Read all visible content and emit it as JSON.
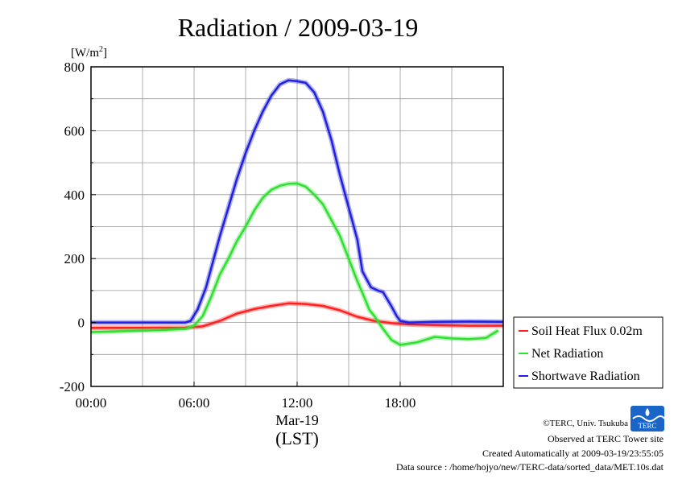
{
  "chart_data": {
    "type": "line",
    "title": "Radiation / 2009-03-19",
    "yunit": "[W/m",
    "yunit_sup": "2",
    "yunit_close": "]",
    "xlabel_date": "Mar-19",
    "xlabel": "(LST)",
    "xlim_hours": [
      0,
      24
    ],
    "ylim": [
      -200,
      800
    ],
    "grid": true,
    "legend_position": "right-bottom",
    "yticks": [
      -200,
      0,
      200,
      400,
      600,
      800
    ],
    "ytick_labels": [
      "-200",
      "0",
      "200",
      "400",
      "600",
      "800"
    ],
    "xticks": [
      0,
      6,
      12,
      18
    ],
    "xtick_labels": [
      "00:00",
      "06:00",
      "12:00",
      "18:00"
    ],
    "series": [
      {
        "name": "Soil Heat Flux 0.02m",
        "color": "#ff2020",
        "x": [
          0,
          3,
          5.5,
          6.5,
          7.5,
          8.5,
          9.5,
          10.5,
          11.5,
          12.5,
          13.5,
          14.5,
          15.5,
          16.5,
          17.5,
          18.5,
          20,
          22,
          24
        ],
        "y": [
          -17,
          -17,
          -16,
          -12,
          5,
          28,
          42,
          52,
          60,
          58,
          52,
          38,
          18,
          5,
          -2,
          -6,
          -8,
          -10,
          -10
        ]
      },
      {
        "name": "Net Radiation",
        "color": "#30e030",
        "x": [
          0,
          2,
          4,
          5.5,
          6,
          6.5,
          7,
          7.5,
          8,
          8.5,
          9,
          9.5,
          10,
          10.5,
          11,
          11.5,
          12,
          12.5,
          13,
          13.5,
          14,
          14.5,
          15,
          15.5,
          15.9,
          16.2,
          16.5,
          17,
          17.5,
          18,
          19,
          20,
          21,
          22,
          23,
          23.7
        ],
        "y": [
          -30,
          -27,
          -24,
          -20,
          -10,
          20,
          80,
          150,
          200,
          255,
          300,
          350,
          390,
          415,
          428,
          434,
          435,
          425,
          400,
          370,
          320,
          270,
          200,
          130,
          80,
          40,
          20,
          -20,
          -55,
          -70,
          -62,
          -45,
          -50,
          -52,
          -48,
          -25
        ]
      },
      {
        "name": "Shortwave Radiation",
        "color": "#2020e0",
        "x": [
          0,
          3,
          5.5,
          5.8,
          6.2,
          6.7,
          7,
          7.5,
          8,
          8.5,
          9,
          9.5,
          10,
          10.5,
          11,
          11.5,
          12,
          12.5,
          13,
          13.5,
          14,
          14.5,
          15,
          15.5,
          15.8,
          16,
          16.3,
          16.7,
          17,
          17.5,
          17.8,
          18,
          18.5,
          20,
          22,
          24
        ],
        "y": [
          0,
          0,
          0,
          5,
          40,
          110,
          170,
          270,
          360,
          450,
          530,
          600,
          660,
          710,
          745,
          758,
          755,
          750,
          720,
          660,
          570,
          460,
          360,
          260,
          160,
          140,
          110,
          100,
          95,
          50,
          20,
          5,
          0,
          2,
          3,
          2
        ]
      }
    ]
  },
  "footer": {
    "copyright": "©TERC, Univ. Tsukuba",
    "observed": "Observed at TERC Tower site",
    "created": "Created Automatically at 2009-03-19/23:55:05",
    "source": "Data source : /home/hojyo/new/TERC-data/sorted_data/MET.10s.dat",
    "logo_text": "TERC"
  }
}
